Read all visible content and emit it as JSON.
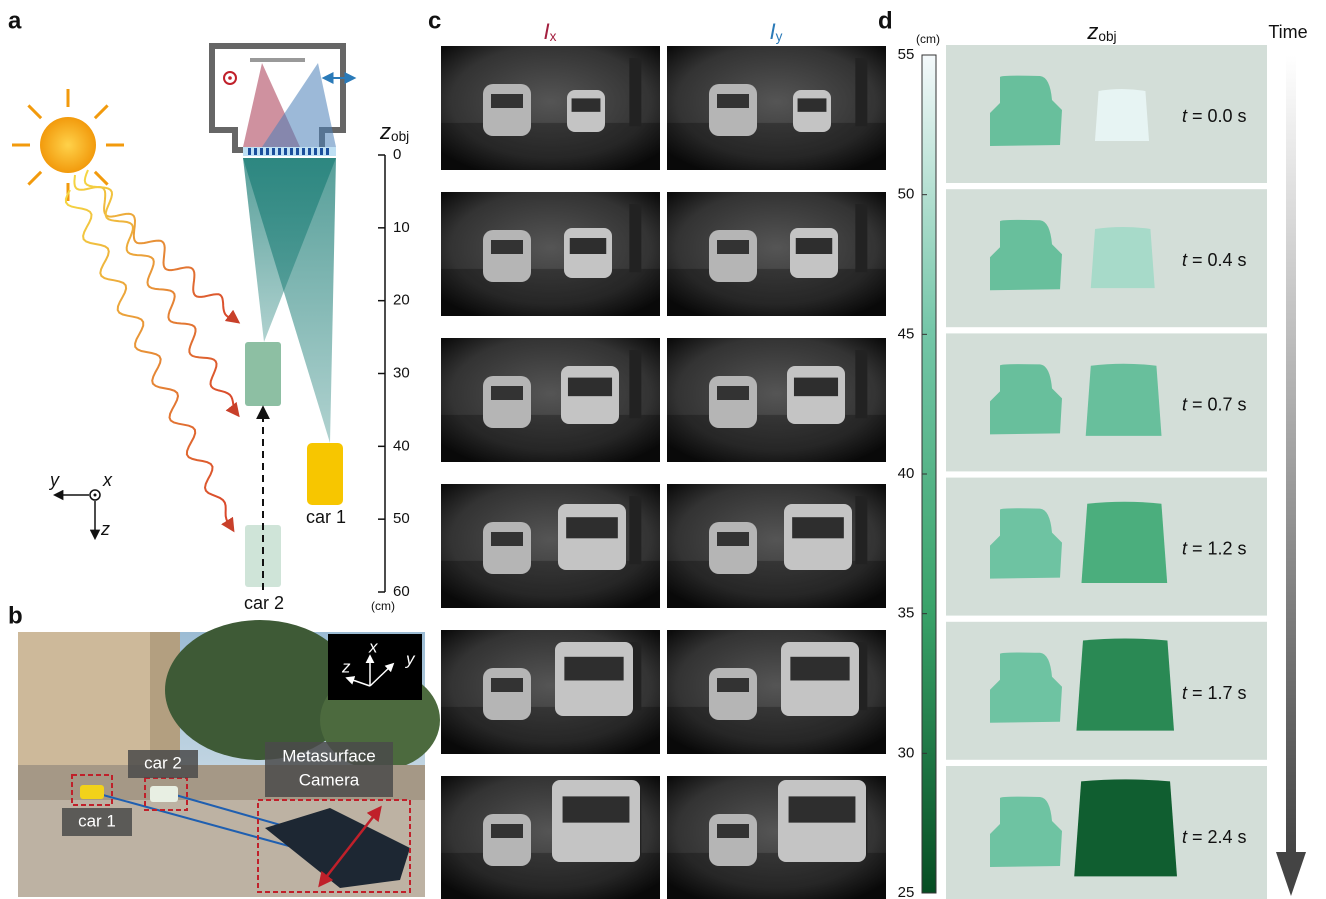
{
  "panel_labels": [
    "a",
    "b",
    "c",
    "d"
  ],
  "panel_a": {
    "axis_title": {
      "main": "z",
      "sub": "obj"
    },
    "depth_lim": [
      0,
      60
    ],
    "depth_ticks": [
      0,
      10,
      20,
      30,
      40,
      50,
      60
    ],
    "unit": "(cm)",
    "car1": "car 1",
    "car2": "car 2",
    "axes": {
      "y": "y",
      "x": "x",
      "z": "z"
    }
  },
  "panel_b": {
    "car2": "car 2",
    "car1": "car 1",
    "camera": [
      "Metasurface",
      "Camera"
    ],
    "axes": {
      "z": "z",
      "x": "x",
      "y": "y"
    }
  },
  "panel_c": {
    "columns": [
      {
        "main": "I",
        "sub": "x",
        "color": "#a3203f"
      },
      {
        "main": "I",
        "sub": "y",
        "color": "#2a7ab8"
      }
    ]
  },
  "panel_d": {
    "unit": "(cm)",
    "title": {
      "main": "z",
      "sub": "obj"
    },
    "time_label": "Time",
    "colorbar": {
      "lim": [
        25,
        55
      ],
      "ticks": [
        55,
        50,
        45,
        40,
        35,
        30,
        25
      ]
    },
    "frames": [
      {
        "time": {
          "var": "t",
          "text": "= 0.0 s"
        },
        "car1_depth": 43,
        "car2_depth": 54
      },
      {
        "time": {
          "var": "t",
          "text": "= 0.4 s"
        },
        "car1_depth": 43,
        "car2_depth": 49
      },
      {
        "time": {
          "var": "t",
          "text": "= 0.7 s"
        },
        "car1_depth": 43,
        "car2_depth": 43
      },
      {
        "time": {
          "var": "t",
          "text": "= 1.2 s"
        },
        "car1_depth": 44,
        "car2_depth": 38
      },
      {
        "time": {
          "var": "t",
          "text": "= 1.7 s"
        },
        "car1_depth": 44,
        "car2_depth": 32
      },
      {
        "time": {
          "var": "t",
          "text": "= 2.4 s"
        },
        "car1_depth": 44,
        "car2_depth": 27
      }
    ]
  }
}
